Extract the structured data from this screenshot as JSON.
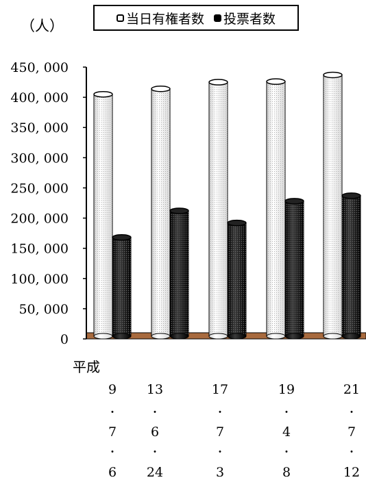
{
  "chart_data": {
    "type": "bar",
    "y_unit": "（人）",
    "era_label": "平成",
    "categories": [
      {
        "year": "9",
        "month": "7",
        "day": "6"
      },
      {
        "year": "13",
        "month": "6",
        "day": "24"
      },
      {
        "year": "17",
        "month": "7",
        "day": "3"
      },
      {
        "year": "19",
        "month": "4",
        "day": "8"
      },
      {
        "year": "21",
        "month": "7",
        "day": "12"
      }
    ],
    "date_separator": "・",
    "series": [
      {
        "name": "当日有権者数",
        "values": [
          405000,
          414000,
          425000,
          426000,
          437000
        ],
        "color": "#f4f4f4"
      },
      {
        "name": "投票者数",
        "values": [
          168000,
          212000,
          192000,
          228000,
          237000
        ],
        "color": "#111111"
      }
    ],
    "ylim": [
      0,
      450000
    ],
    "yticks": [
      0,
      50000,
      100000,
      150000,
      200000,
      250000,
      300000,
      350000,
      400000,
      450000
    ],
    "ytick_labels": [
      "0",
      "50, 000",
      "100, 000",
      "150, 000",
      "200, 000",
      "250, 000",
      "300, 000",
      "350, 000",
      "400, 000",
      "450, 000"
    ],
    "grid": false,
    "legend_position": "top",
    "floor_color": "#a86a3e"
  }
}
